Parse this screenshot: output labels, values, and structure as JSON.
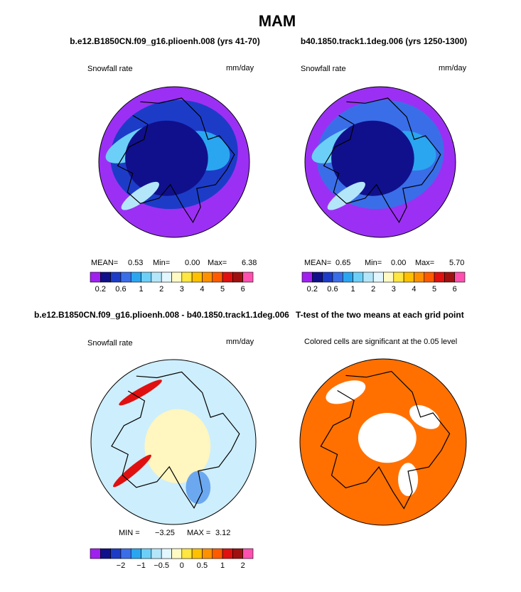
{
  "title": "MAM",
  "panels": [
    {
      "title": "b.e12.B1850CN.f09_g16.plioenh.008 (yrs 41-70)",
      "label_left": "Snowfall rate",
      "label_right": "mm/day",
      "stats": [
        "MEAN=",
        "0.53",
        "Min=",
        "0.00",
        "Max=",
        "6.38"
      ]
    },
    {
      "title": "b40.1850.track1.1deg.006 (yrs 1250-1300)",
      "label_left": "Snowfall rate",
      "label_right": "mm/day",
      "stats": [
        "MEAN=",
        "0.65",
        "Min=",
        "0.00",
        "Max=",
        "5.70"
      ]
    },
    {
      "title": "b.e12.B1850CN.f09_g16.plioenh.008 - b40.1850.track1.1deg.006",
      "label_left": "Snowfall rate",
      "label_right": "mm/day",
      "stats": [
        "MIN =",
        "−3.25",
        "MAX =",
        "3.12"
      ]
    },
    {
      "title": "T-test of the two means at each grid point",
      "label_left": "Colored cells are significant at the 0.05 level"
    }
  ],
  "colorbars": [
    {
      "colors": [
        "#a020f0",
        "#10108c",
        "#1c3cc8",
        "#3a6ee8",
        "#2aa6f0",
        "#6ccff8",
        "#b4e6fa",
        "#e2f6ff",
        "#fffac4",
        "#ffe640",
        "#ffc000",
        "#ff9000",
        "#ff5a00",
        "#e01010",
        "#a01010",
        "#ff50b0"
      ],
      "labels": [
        "0.2",
        "0.6",
        "1",
        "2",
        "3",
        "4",
        "5",
        "6"
      ]
    },
    {
      "colors": [
        "#a020f0",
        "#10108c",
        "#1c3cc8",
        "#3a6ee8",
        "#2aa6f0",
        "#6ccff8",
        "#b4e6fa",
        "#e2f6ff",
        "#fffac4",
        "#ffe640",
        "#ffc000",
        "#ff9000",
        "#ff5a00",
        "#e01010",
        "#a01010",
        "#ff50b0"
      ],
      "labels": [
        "0.2",
        "0.6",
        "1",
        "2",
        "3",
        "4",
        "5",
        "6"
      ]
    },
    {
      "colors": [
        "#a020f0",
        "#10108c",
        "#1c3cc8",
        "#3a6ee8",
        "#2aa6f0",
        "#6ccff8",
        "#b4e6fa",
        "#e2f6ff",
        "#fffac4",
        "#ffe640",
        "#ffc000",
        "#ff9000",
        "#ff5a00",
        "#e01010",
        "#a01010",
        "#ff50b0"
      ],
      "labels": [
        "−2",
        "−1",
        "−0.5",
        "0",
        "0.5",
        "1",
        "2"
      ]
    }
  ]
}
